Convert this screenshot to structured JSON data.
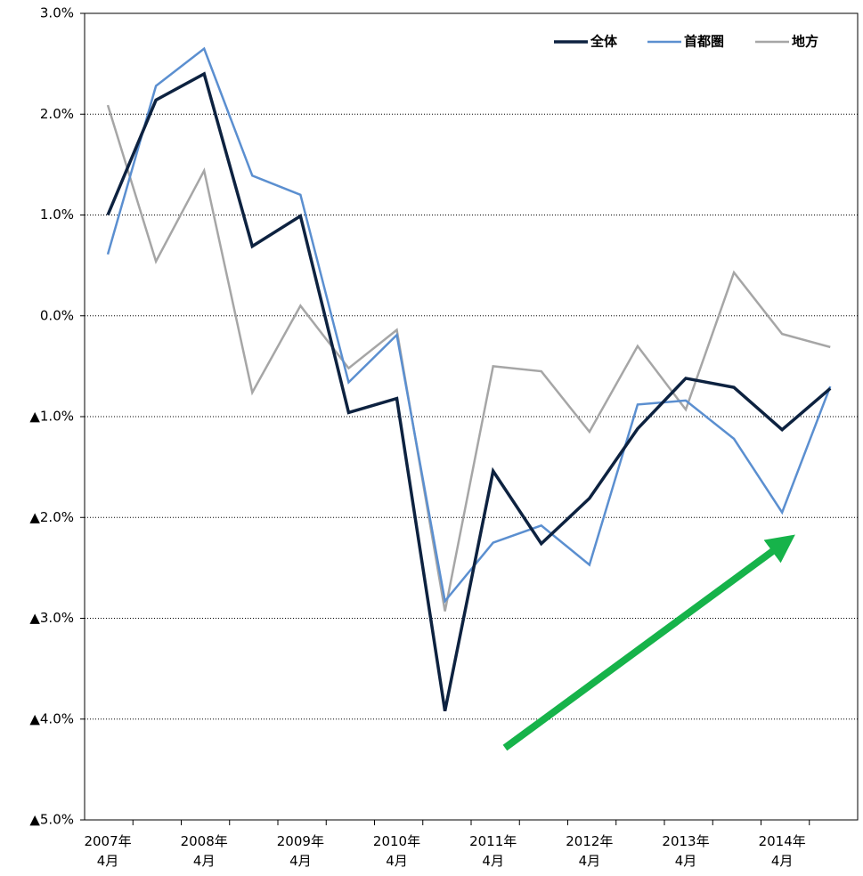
{
  "chart_data": {
    "type": "line",
    "categories": [
      "2007年\n4月",
      null,
      "2008年\n4月",
      null,
      "2009年\n4月",
      null,
      "2010年\n4月",
      null,
      "2011年\n4月",
      null,
      "2012年\n4月",
      null,
      "2013年\n4月",
      null,
      "2014年\n4月",
      null
    ],
    "series": [
      {
        "name": "全体",
        "color": "#0d2240",
        "values": [
          1.0,
          2.14,
          2.4,
          0.69,
          0.99,
          -0.96,
          -0.82,
          -3.92,
          -1.54,
          -2.26,
          -1.81,
          -1.12,
          -0.62,
          -0.71,
          -1.13,
          -0.72
        ]
      },
      {
        "name": "首都圏",
        "color": "#5b8fd0",
        "values": [
          0.61,
          2.28,
          2.65,
          1.39,
          1.2,
          -0.66,
          -0.19,
          -2.83,
          -2.25,
          -2.08,
          -2.47,
          -0.88,
          -0.84,
          -1.22,
          -1.95,
          -0.7
        ]
      },
      {
        "name": "地方",
        "color": "#a6a6a6",
        "values": [
          2.09,
          0.54,
          1.44,
          -0.76,
          0.1,
          -0.52,
          -0.14,
          -2.93,
          -0.5,
          -0.55,
          -1.15,
          -0.3,
          -0.93,
          0.43,
          -0.18,
          -0.31
        ]
      }
    ],
    "ylim": [
      -5,
      3
    ],
    "yticks": [
      {
        "value": -5,
        "label": "▲5.0%"
      },
      {
        "value": -4,
        "label": "▲4.0%"
      },
      {
        "value": -3,
        "label": "▲3.0%"
      },
      {
        "value": -2,
        "label": "▲2.0%"
      },
      {
        "value": -1,
        "label": "▲1.0%"
      },
      {
        "value": 0,
        "label": "0.0%"
      },
      {
        "value": 1,
        "label": "1.0%"
      },
      {
        "value": 2,
        "label": "2.0%"
      },
      {
        "value": 3,
        "label": "3.0%"
      }
    ],
    "grid": true,
    "legend": "top-right"
  }
}
